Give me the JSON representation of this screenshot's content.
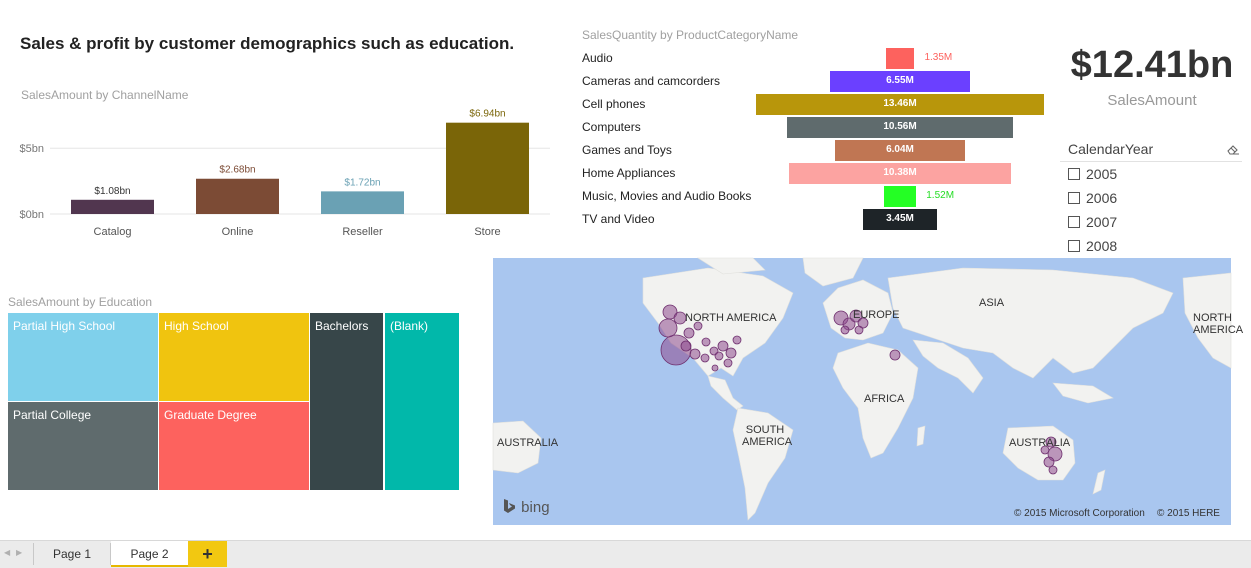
{
  "page_title": "Sales & profit by customer demographics such as education.",
  "channel_chart": {
    "title": "SalesAmount by ChannelName",
    "chart_data": {
      "type": "bar",
      "categories": [
        "Catalog",
        "Online",
        "Reseller",
        "Store"
      ],
      "values": [
        1.08,
        2.68,
        1.72,
        6.94
      ],
      "value_labels": [
        "$1.08bn",
        "$2.68bn",
        "$1.72bn",
        "$6.94bn"
      ],
      "colors": [
        "#51364f",
        "#7c4b35",
        "#6aa1b4",
        "#7a6508"
      ],
      "label_colors": [
        "#333333",
        "#7c4b35",
        "#6aa1b4",
        "#7a6508"
      ],
      "yticks": [
        0,
        5
      ],
      "ytick_labels": [
        "$0bn",
        "$5bn"
      ],
      "ylim": [
        0,
        7.6
      ],
      "grid": true
    }
  },
  "category_chart": {
    "title": "SalesQuantity by ProductCategoryName",
    "chart_data": {
      "type": "bar",
      "orientation": "horizontal-centered",
      "categories": [
        "Audio",
        "Cameras and camcorders",
        "Cell phones",
        "Computers",
        "Games and Toys",
        "Home Appliances",
        "Music, Movies and Audio Books",
        "TV and Video"
      ],
      "values": [
        1.35,
        6.55,
        13.46,
        10.56,
        6.04,
        10.38,
        1.52,
        3.45
      ],
      "value_labels": [
        "1.35M",
        "6.55M",
        "13.46M",
        "10.56M",
        "6.04M",
        "10.38M",
        "1.52M",
        "3.45M"
      ],
      "colors": [
        "#fd625e",
        "#6b40ff",
        "#b8960b",
        "#5f6b6d",
        "#c07653",
        "#fca3a1",
        "#24ff24",
        "#1e2428"
      ],
      "label_colors": [
        "#fd625e",
        "#ffffff",
        "#ffffff",
        "#ffffff",
        "#ffffff",
        "#ffffff",
        "#24dd24",
        "#ffffff"
      ],
      "max": 13.46
    }
  },
  "kpi": {
    "value": "$12.41bn",
    "label": "SalesAmount"
  },
  "slicer": {
    "header": "CalendarYear",
    "items": [
      "2005",
      "2006",
      "2007",
      "2008"
    ]
  },
  "treemap": {
    "title": "SalesAmount by Education",
    "cells": [
      {
        "label": "Partial High School",
        "color": "#7fd0eb"
      },
      {
        "label": "High School",
        "color": "#f0c40f"
      },
      {
        "label": "Bachelors",
        "color": "#374649"
      },
      {
        "label": "(Blank)",
        "color": "#01b8aa"
      },
      {
        "label": "Partial College",
        "color": "#5f6b6d"
      },
      {
        "label": "Graduate Degree",
        "color": "#fd625e"
      }
    ]
  },
  "map": {
    "labels": [
      "NORTH AMERICA",
      "EUROPE",
      "ASIA",
      "AFRICA",
      "SOUTH AMERICA",
      "AUSTRALIA",
      "AUSTRALIA",
      "NORTH AMERICA"
    ],
    "logo": "bing",
    "copyright_1": "© 2015 Microsoft Corporation",
    "copyright_2": "© 2015 HERE",
    "ocean_color": "#a9c6ef",
    "bubble_color": "#8e4b8e"
  },
  "tabs": {
    "page1": "Page 1",
    "page2": "Page 2",
    "add": "+"
  }
}
